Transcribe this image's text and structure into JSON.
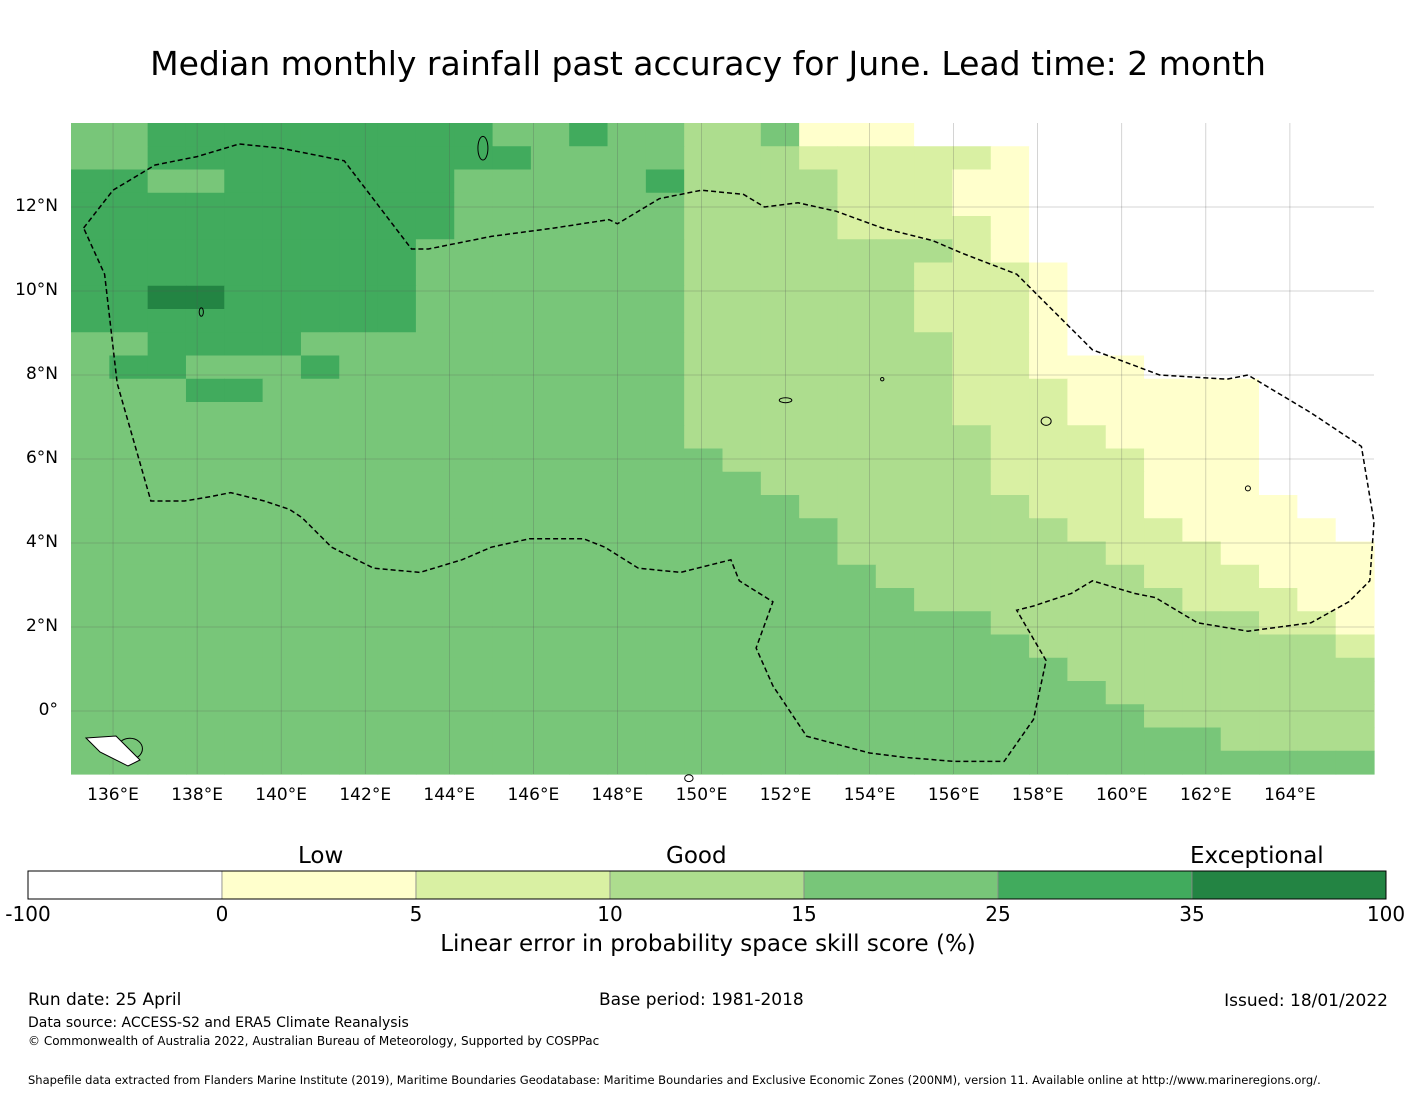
{
  "title": "Median monthly rainfall past accuracy for June. Lead time: 2 month",
  "map": {
    "lon_range": [
      135,
      166
    ],
    "lat_range": [
      -1.5,
      14
    ],
    "grid_step_deg": 1,
    "lon_ticks": [
      "136°E",
      "138°E",
      "140°E",
      "142°E",
      "144°E",
      "146°E",
      "148°E",
      "150°E",
      "152°E",
      "154°E",
      "156°E",
      "158°E",
      "160°E",
      "162°E",
      "164°E"
    ],
    "lat_ticks": [
      "12°N",
      "10°N",
      "8°N",
      "6°N",
      "4°N",
      "2°N",
      "0°"
    ],
    "boundary": "Federated States of Micronesia EEZ",
    "category_key": "0 = missing, 1 = 0-5, 2 = 5-10, 3 = 10-15, 4 = 15-25, 5 = 25-35, 6 = 35-100",
    "grid_rows_north_to_south": [
      "4455555555544544334111000000000000",
      "4455555555554444333222221000000000",
      "5544555555444445333322211000000000",
      "5555555555444444333322211000000000",
      "5555555555444444333322221000000000",
      "5555555554444444333333321000000000",
      "5555555554444444333333222100000000",
      "5566555554444444333333222100000000",
      "5555555554444444333333222100000000",
      "4455554444444444333333322100000000",
      "4554445444444444333333322111000000",
      "4445544444444444333333322211111000",
      "4444444444444444333333322211111000",
      "4444444444444444333333332221111000",
      "4444444444444444433333332222111000",
      "4444444444444444443333332222111000",
      "4444444444444444444333333222111100",
      "4444444444444444444433333322211110",
      "4444444444444444444433333332221111",
      "4444444444444444444443333333222111",
      "4444444444444444444444333333322211",
      "4444444444444444444444443333333221",
      "4444444444444444444444444333333332",
      "4444444444444444444444444433333333",
      "4444444444444444444444444443333333",
      "4444444444444444444444444444333333",
      "4444444444444444444444444444443333",
      "4444444444444444444444444444444444"
    ]
  },
  "colorbar": {
    "categories": [
      "Low",
      "Good",
      "Exceptional"
    ],
    "ticks": [
      "-100",
      "0",
      "5",
      "10",
      "15",
      "25",
      "35",
      "100"
    ],
    "colors": [
      "#ffffff",
      "#ffffcc",
      "#d9f0a3",
      "#addd8e",
      "#78c679",
      "#41ab5d",
      "#238443"
    ],
    "label": "Linear error in probability space skill score (%)"
  },
  "footer": {
    "run_date": "Run date: 25 April",
    "base_period": "Base period: 1981-2018",
    "issued": "Issued: 18/01/2022",
    "data_source": "Data source: ACCESS-S2 and ERA5 Climate Reanalysis",
    "copyright": "© Commonwealth of Australia 2022, Australian Bureau of Meteorology, Supported by COSPPac",
    "shapefile": "Shapefile data extracted from Flanders Marine Institute (2019), Maritime Boundaries Geodatabase: Maritime Boundaries and Exclusive Economic Zones (200NM), version 11. Available online at http://www.marineregions.org/."
  }
}
